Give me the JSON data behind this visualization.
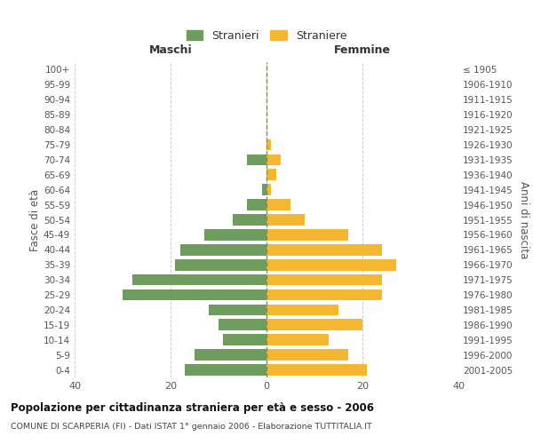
{
  "age_groups": [
    "100+",
    "95-99",
    "90-94",
    "85-89",
    "80-84",
    "75-79",
    "70-74",
    "65-69",
    "60-64",
    "55-59",
    "50-54",
    "45-49",
    "40-44",
    "35-39",
    "30-34",
    "25-29",
    "20-24",
    "15-19",
    "10-14",
    "5-9",
    "0-4"
  ],
  "birth_years": [
    "≤ 1905",
    "1906-1910",
    "1911-1915",
    "1916-1920",
    "1921-1925",
    "1926-1930",
    "1931-1935",
    "1936-1940",
    "1941-1945",
    "1946-1950",
    "1951-1955",
    "1956-1960",
    "1961-1965",
    "1966-1970",
    "1971-1975",
    "1976-1980",
    "1981-1985",
    "1986-1990",
    "1991-1995",
    "1996-2000",
    "2001-2005"
  ],
  "maschi": [
    0,
    0,
    0,
    0,
    0,
    0,
    4,
    0,
    1,
    4,
    7,
    13,
    18,
    19,
    28,
    30,
    12,
    10,
    9,
    15,
    17
  ],
  "femmine": [
    0,
    0,
    0,
    0,
    0,
    1,
    3,
    2,
    1,
    5,
    8,
    17,
    24,
    27,
    24,
    24,
    15,
    20,
    13,
    17,
    21
  ],
  "male_color": "#6e9c5e",
  "female_color": "#f5b731",
  "legend_male": "Stranieri",
  "legend_female": "Straniere",
  "label_maschi": "Maschi",
  "label_femmine": "Femmine",
  "ylabel_left": "Fasce di età",
  "ylabel_right": "Anni di nascita",
  "title_main": "Popolazione per cittadinanza straniera per età e sesso - 2006",
  "title_sub": "COMUNE DI SCARPERIA (FI) - Dati ISTAT 1° gennaio 2006 - Elaborazione TUTTITALIA.IT",
  "xlim": [
    -40,
    40
  ],
  "xticks": [
    -40,
    -20,
    0,
    20,
    40
  ],
  "xtick_labels": [
    "40",
    "20",
    "0",
    "20",
    "40"
  ],
  "background_color": "#ffffff",
  "grid_color": "#cccccc",
  "bar_height": 0.75
}
